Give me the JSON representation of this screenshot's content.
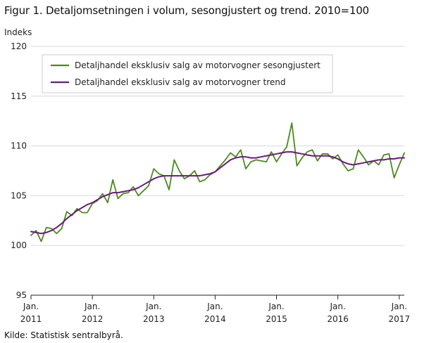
{
  "title": "Figur 1. Detaljomsetningen i volum, sesongjustert og trend. 2010=100",
  "source": "Kilde: Statistisk sentralbyrå.",
  "chart_data": {
    "type": "line",
    "ylabel": "Indeks",
    "xlabel": "",
    "ylim": [
      95,
      120
    ],
    "xlim": [
      0,
      73
    ],
    "y_ticks": [
      95,
      100,
      105,
      110,
      115,
      120
    ],
    "x_ticks": [
      {
        "x": 0,
        "line1": "Jan.",
        "line2": "2011"
      },
      {
        "x": 12,
        "line1": "Jan.",
        "line2": "2012"
      },
      {
        "x": 24,
        "line1": "Jan.",
        "line2": "2013"
      },
      {
        "x": 36,
        "line1": "Jan.",
        "line2": "2014"
      },
      {
        "x": 48,
        "line1": "Jan.",
        "line2": "2015"
      },
      {
        "x": 60,
        "line1": "Jan.",
        "line2": "2016"
      },
      {
        "x": 72,
        "line1": "Jan.",
        "line2": "2017"
      }
    ],
    "grid": "horizontal",
    "legend_position": "top-left inside",
    "series": [
      {
        "name": "Detaljhandel eksklusiv salg av motorvogner sesongjustert",
        "color": "#4a8c1c",
        "values": [
          101.0,
          101.5,
          100.4,
          101.8,
          101.7,
          101.2,
          101.7,
          103.4,
          103.0,
          103.7,
          103.3,
          103.3,
          104.2,
          104.5,
          105.2,
          104.3,
          106.6,
          104.7,
          105.2,
          105.3,
          105.9,
          105.0,
          105.5,
          106.0,
          107.7,
          107.2,
          107.0,
          105.6,
          108.6,
          107.5,
          106.7,
          107.0,
          107.5,
          106.4,
          106.6,
          107.1,
          107.4,
          108.0,
          108.6,
          109.3,
          108.9,
          109.6,
          107.7,
          108.4,
          108.6,
          108.5,
          108.4,
          109.4,
          108.4,
          109.2,
          109.9,
          112.3,
          108.0,
          108.8,
          109.4,
          109.6,
          108.5,
          109.2,
          109.2,
          108.7,
          109.1,
          108.2,
          107.5,
          107.7,
          109.6,
          108.9,
          108.1,
          108.5,
          108.1,
          109.1,
          109.2,
          106.8,
          108.1,
          109.3
        ],
        "y_at_x_73": 109.3
      },
      {
        "name": "Detaljhandel eksklusiv salg av motorvogner trend",
        "color": "#6a1b7a",
        "values": [
          101.4,
          101.3,
          101.2,
          101.3,
          101.5,
          101.8,
          102.2,
          102.7,
          103.1,
          103.5,
          103.8,
          104.1,
          104.3,
          104.6,
          104.9,
          105.1,
          105.3,
          105.3,
          105.4,
          105.5,
          105.6,
          105.8,
          106.1,
          106.4,
          106.7,
          106.9,
          107.0,
          107.0,
          107.0,
          107.0,
          107.0,
          107.0,
          107.0,
          107.0,
          107.1,
          107.2,
          107.4,
          107.8,
          108.2,
          108.6,
          108.8,
          108.9,
          108.9,
          108.8,
          108.8,
          108.9,
          109.0,
          109.1,
          109.2,
          109.3,
          109.4,
          109.4,
          109.3,
          109.2,
          109.1,
          109.0,
          109.0,
          109.0,
          109.0,
          108.9,
          108.7,
          108.4,
          108.2,
          108.1,
          108.2,
          108.3,
          108.4,
          108.5,
          108.6,
          108.6,
          108.7,
          108.7,
          108.8,
          108.8
        ]
      }
    ]
  }
}
